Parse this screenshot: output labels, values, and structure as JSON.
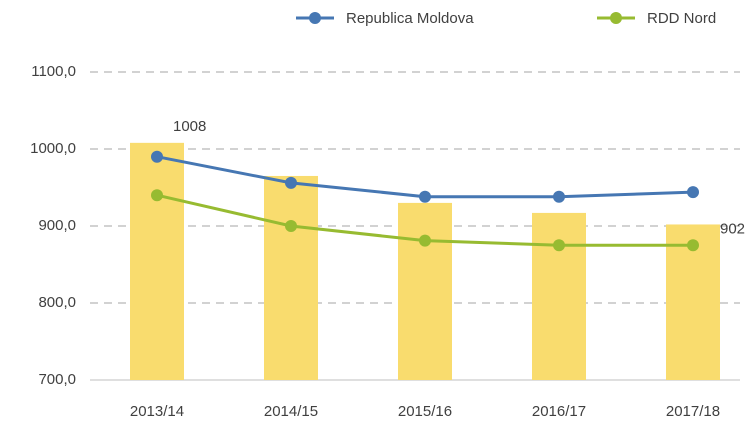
{
  "chart_data": {
    "type": "bar",
    "categories": [
      "2013/14",
      "2014/15",
      "2015/16",
      "2016/17",
      "2017/18"
    ],
    "bars": {
      "color": "#f9dc6e",
      "values": [
        1008,
        965,
        930,
        917,
        902
      ],
      "value_labels": [
        "1008",
        null,
        null,
        null,
        "902"
      ]
    },
    "series": [
      {
        "name": "Republica Moldova",
        "color": "#4677b3",
        "values": [
          990,
          956,
          938,
          938,
          944
        ]
      },
      {
        "name": "RDD Nord",
        "color": "#97bb31",
        "values": [
          940,
          900,
          881,
          875,
          875
        ]
      }
    ],
    "ylim": [
      700,
      1100
    ],
    "yticks": [
      {
        "value": 700,
        "label": "700,0"
      },
      {
        "value": 800,
        "label": "800,0"
      },
      {
        "value": 900,
        "label": "900,0"
      },
      {
        "value": 1000,
        "label": "1000,0"
      },
      {
        "value": 1100,
        "label": "1100,0"
      }
    ],
    "grid": true,
    "legend": "top"
  }
}
